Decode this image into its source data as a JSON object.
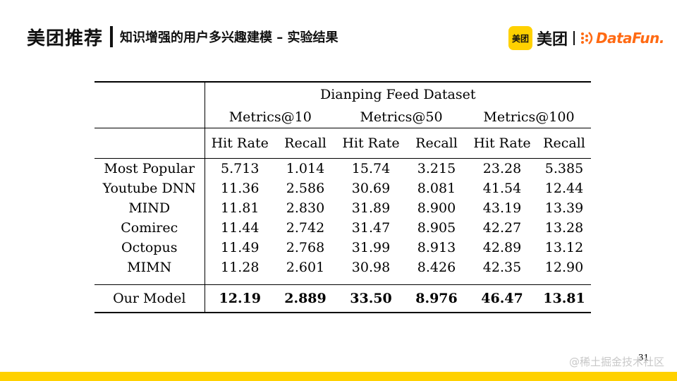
{
  "header": {
    "brand": "美团推荐",
    "title": "知识增强的用户多兴趣建模 – 实验结果"
  },
  "logos": {
    "meituan_square_text": "美团",
    "meituan_text": "美团",
    "datafun_text": "DataFun."
  },
  "colors": {
    "brand_yellow": "#FFD100",
    "datafun_orange": "#ff6a13"
  },
  "table": {
    "dataset": "Dianping Feed Dataset",
    "metric_groups": [
      "Metrics@10",
      "Metrics@50",
      "Metrics@100"
    ],
    "sub_headers": [
      "Hit Rate",
      "Recall",
      "Hit Rate",
      "Recall",
      "Hit Rate",
      "Recall"
    ],
    "rows": [
      {
        "model": "Most Popular",
        "values": [
          "5.713",
          "1.014",
          "15.74",
          "3.215",
          "23.28",
          "5.385"
        ]
      },
      {
        "model": "Youtube DNN",
        "values": [
          "11.36",
          "2.586",
          "30.69",
          "8.081",
          "41.54",
          "12.44"
        ]
      },
      {
        "model": "MIND",
        "values": [
          "11.81",
          "2.830",
          "31.89",
          "8.900",
          "43.19",
          "13.39"
        ]
      },
      {
        "model": "Comirec",
        "values": [
          "11.44",
          "2.742",
          "31.47",
          "8.905",
          "42.27",
          "13.28"
        ]
      },
      {
        "model": "Octopus",
        "values": [
          "11.49",
          "2.768",
          "31.99",
          "8.913",
          "42.89",
          "13.12"
        ]
      },
      {
        "model": "MIMN",
        "values": [
          "11.28",
          "2.601",
          "30.98",
          "8.426",
          "42.35",
          "12.90"
        ]
      }
    ],
    "ours": {
      "model": "Our Model",
      "values": [
        "12.19",
        "2.889",
        "33.50",
        "8.976",
        "46.47",
        "13.81"
      ]
    }
  },
  "footer": {
    "page_number": "31",
    "watermark": "@稀土掘金技术社区"
  }
}
